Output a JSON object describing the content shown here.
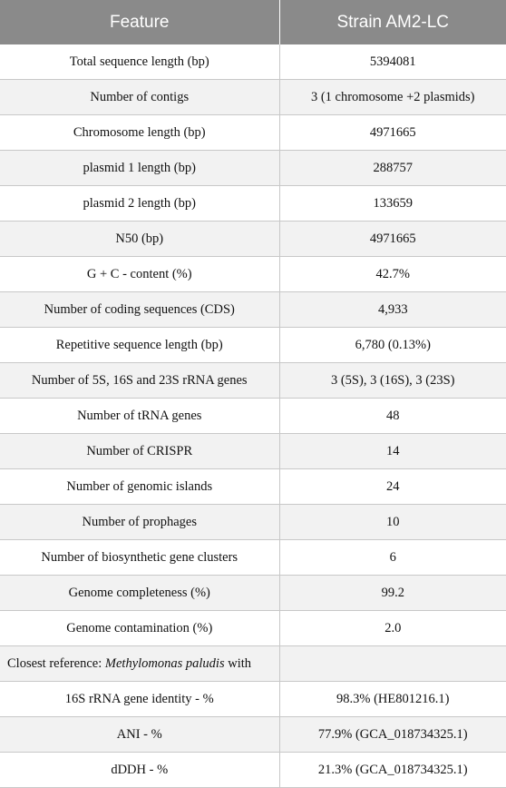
{
  "table": {
    "headers": [
      "Feature",
      "Strain AM2-LC"
    ],
    "rows": [
      {
        "feature": "Total sequence length (bp)",
        "value": "5394081"
      },
      {
        "feature": "Number of contigs",
        "value": "3 (1 chromosome +2 plasmids)"
      },
      {
        "feature": "Chromosome length (bp)",
        "value": "4971665"
      },
      {
        "feature": "plasmid 1 length (bp)",
        "value": "288757"
      },
      {
        "feature": "plasmid 2 length (bp)",
        "value": "133659"
      },
      {
        "feature": "N50 (bp)",
        "value": "4971665"
      },
      {
        "feature": "G + C - content (%)",
        "value": "42.7%"
      },
      {
        "feature": "Number of coding sequences (CDS)",
        "value": "4,933"
      },
      {
        "feature": "Repetitive sequence length (bp)",
        "value": "6,780 (0.13%)"
      },
      {
        "feature": "Number of 5S, 16S and 23S rRNA genes",
        "value": "3 (5S), 3 (16S), 3 (23S)"
      },
      {
        "feature": "Number of tRNA genes",
        "value": "48"
      },
      {
        "feature": "Number of CRISPR",
        "value": "14"
      },
      {
        "feature": "Number of genomic islands",
        "value": "24"
      },
      {
        "feature": "Number of prophages",
        "value": "10"
      },
      {
        "feature": "Number of biosynthetic gene clusters",
        "value": "6"
      },
      {
        "feature": "Genome completeness (%)",
        "value": "99.2"
      }
    ],
    "contamination": {
      "feature": "Genome contamination (%)",
      "value": "2.0"
    },
    "reference": {
      "prefix": "Closest reference: ",
      "species": "Methylomonas paludis",
      "suffix": " with",
      "value": ""
    },
    "reference_rows": [
      {
        "feature": "16S rRNA gene identity - %",
        "value": "98.3% (HE801216.1)"
      },
      {
        "feature": "ANI - %",
        "value": "77.9% (GCA_018734325.1)"
      },
      {
        "feature": "dDDH - %",
        "value": "21.3% (GCA_018734325.1)"
      }
    ]
  }
}
